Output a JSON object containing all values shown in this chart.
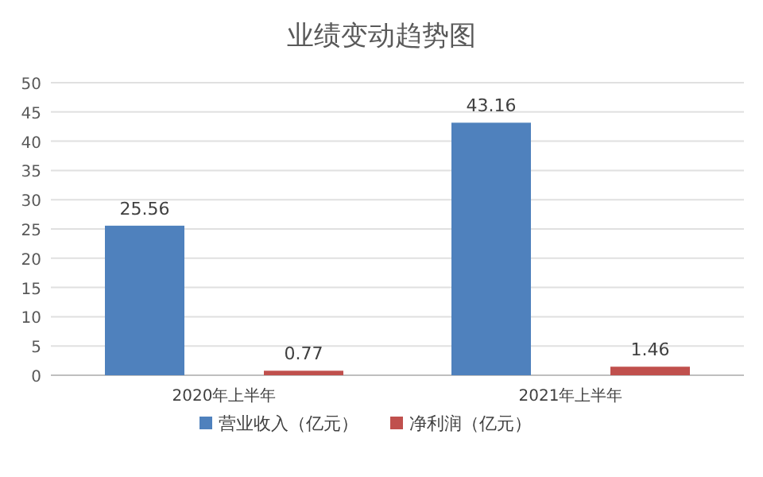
{
  "chart_data": {
    "type": "bar",
    "title": "业绩变动趋势图",
    "categories": [
      "2020年上半年",
      "2021年上半年"
    ],
    "series": [
      {
        "name": "营业收入（亿元）",
        "color": "#4f81bd",
        "values": [
          25.56,
          43.16
        ]
      },
      {
        "name": "净利润（亿元）",
        "color": "#c0504d",
        "values": [
          0.77,
          1.46
        ]
      }
    ],
    "ylim": [
      0,
      50
    ],
    "yticks": [
      0,
      5,
      10,
      15,
      20,
      25,
      30,
      35,
      40,
      45,
      50
    ],
    "grid": "y",
    "legend": "bottom",
    "data_labels": true
  }
}
